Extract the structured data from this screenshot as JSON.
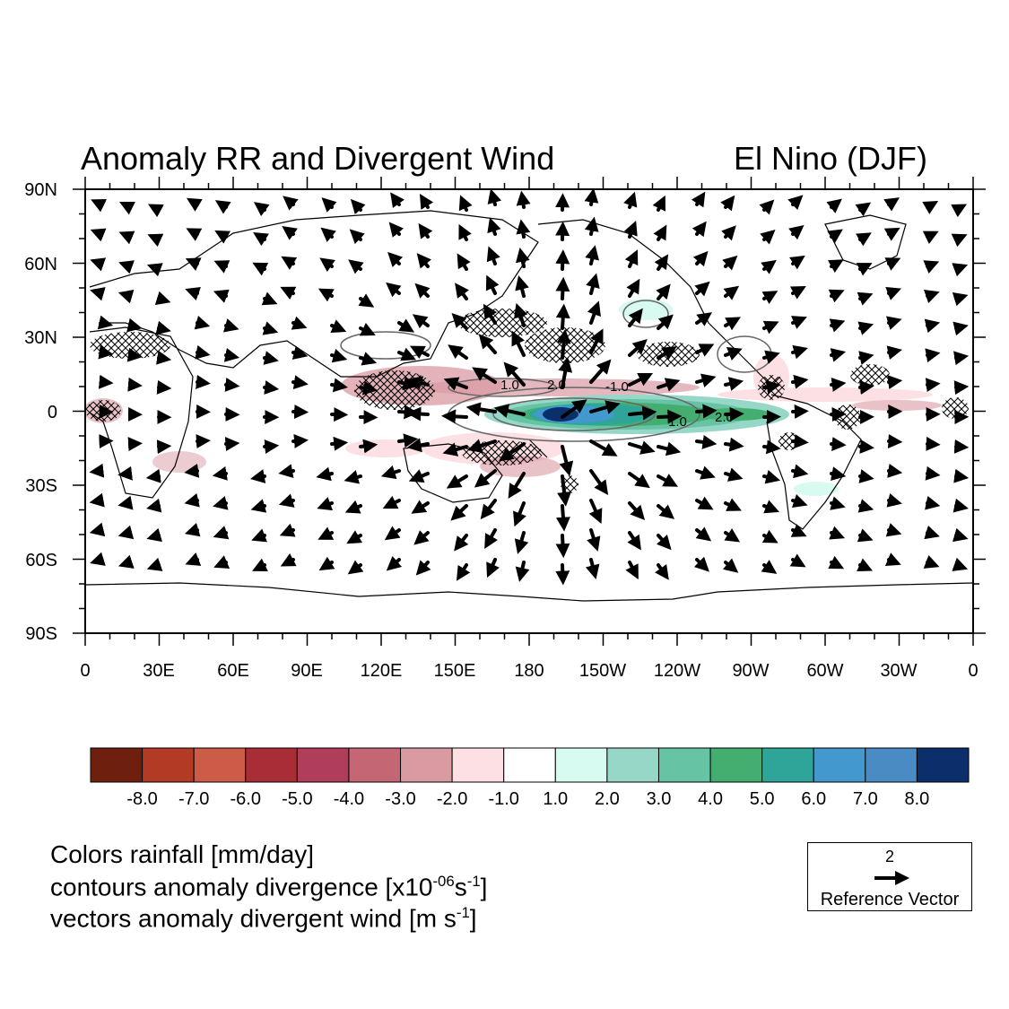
{
  "map": {
    "title_left": "Anomaly RR and Divergent Wind",
    "title_right": "El Nino  (DJF)",
    "lat_labels": [
      "90N",
      "60N",
      "30N",
      "0",
      "30S",
      "60S",
      "90S"
    ],
    "lon_labels": [
      "0",
      "30E",
      "60E",
      "90E",
      "120E",
      "150E",
      "180",
      "150W",
      "120W",
      "90W",
      "60W",
      "30W",
      "0"
    ],
    "contour_labels": [
      "1.0",
      "2.0",
      "-1.0",
      "1.0",
      "2.0"
    ]
  },
  "colorbar": {
    "labels": [
      "-8.0",
      "-7.0",
      "-6.0",
      "-5.0",
      "-4.0",
      "-3.0",
      "-2.0",
      "-1.0",
      "1.0",
      "2.0",
      "3.0",
      "4.0",
      "5.0",
      "6.0",
      "7.0",
      "8.0"
    ],
    "colors": [
      "#6e1f0d",
      "#b33a24",
      "#cc5c48",
      "#a82d37",
      "#b03e5a",
      "#c46674",
      "#d99aa2",
      "#fde0e3",
      "#ffffff",
      "#d7fbf1",
      "#97d7c8",
      "#66c3a4",
      "#43ae70",
      "#2fa599",
      "#4398cd",
      "#4b8bc4",
      "#0b2f6b"
    ]
  },
  "legend": {
    "line1": "Colors rainfall [mm/day]",
    "line2_main": "contours anomaly divergence  [x10",
    "line2_sup1": "-06",
    "line2_mid": "s",
    "line2_sup2": "-1",
    "line2_end": "]",
    "line3_main": "vectors anomaly divergent wind [m s",
    "line3_sup": "-1",
    "line3_end": "]"
  },
  "reference_vector": {
    "magnitude": "2",
    "label": "Reference Vector"
  }
}
